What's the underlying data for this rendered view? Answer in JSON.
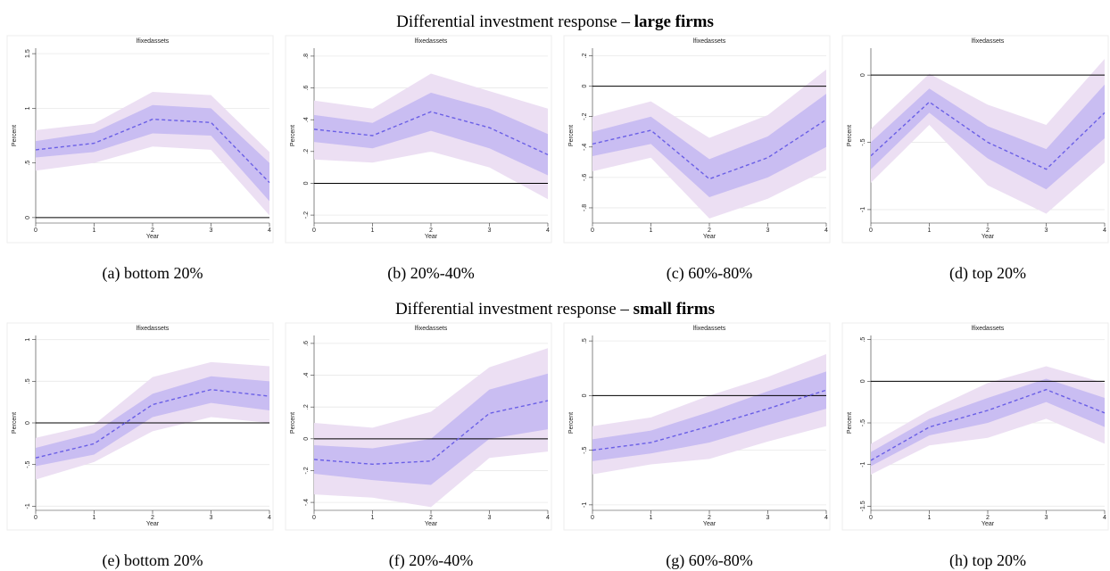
{
  "figure": {
    "headings": [
      {
        "text": "Differential investment response –",
        "bold": "large firms"
      },
      {
        "text": "Differential investment response –",
        "bold": "small firms"
      }
    ]
  },
  "chart_data": [
    {
      "type": "line",
      "title": "lfixedassets",
      "xlabel": "Year",
      "ylabel": "Percent",
      "caption": "(a) bottom 20%",
      "x": [
        0,
        1,
        2,
        3,
        4
      ],
      "values": [
        0.62,
        0.68,
        0.9,
        0.87,
        0.32
      ],
      "color": "#6a5fe6",
      "band_inner": {
        "lower": [
          0.55,
          0.6,
          0.77,
          0.75,
          0.15
        ],
        "upper": [
          0.7,
          0.78,
          1.03,
          1.0,
          0.5
        ],
        "color": "#c9bdf2"
      },
      "band_outer": {
        "lower": [
          0.43,
          0.5,
          0.65,
          0.62,
          0.02
        ],
        "upper": [
          0.8,
          0.86,
          1.15,
          1.12,
          0.6
        ],
        "color": "#ecdff3"
      },
      "reference_line": 0,
      "xlim": [
        0,
        4
      ],
      "xticks": [
        0,
        1,
        2,
        3,
        4
      ],
      "ylim": [
        -0.05,
        1.55
      ],
      "yticks": [
        0,
        {
          "value": 0.5,
          "label": ".5"
        },
        1,
        1.5
      ],
      "grid": true
    },
    {
      "type": "line",
      "title": "lfixedassets",
      "xlabel": "Year",
      "ylabel": "Percent",
      "caption": "(b) 20%-40%",
      "x": [
        0,
        1,
        2,
        3,
        4
      ],
      "values": [
        0.34,
        0.3,
        0.45,
        0.35,
        0.18
      ],
      "color": "#6a5fe6",
      "band_inner": {
        "lower": [
          0.26,
          0.22,
          0.33,
          0.22,
          0.05
        ],
        "upper": [
          0.43,
          0.38,
          0.57,
          0.47,
          0.31
        ],
        "color": "#c9bdf2"
      },
      "band_outer": {
        "lower": [
          0.15,
          0.13,
          0.2,
          0.1,
          -0.1
        ],
        "upper": [
          0.52,
          0.47,
          0.69,
          0.58,
          0.47
        ],
        "color": "#ecdff3"
      },
      "reference_line": 0,
      "xlim": [
        0,
        4
      ],
      "xticks": [
        0,
        1,
        2,
        3,
        4
      ],
      "ylim": [
        -0.25,
        0.85
      ],
      "yticks": [
        {
          "value": -0.2,
          "label": "-.2"
        },
        0,
        {
          "value": 0.2,
          "label": ".2"
        },
        {
          "value": 0.4,
          "label": ".4"
        },
        {
          "value": 0.6,
          "label": ".6"
        },
        {
          "value": 0.8,
          "label": ".8"
        }
      ],
      "grid": true
    },
    {
      "type": "line",
      "title": "lfixedassets",
      "xlabel": "Year",
      "ylabel": "Percent",
      "caption": "(c) 60%-80%",
      "x": [
        0,
        1,
        2,
        3,
        4
      ],
      "values": [
        -0.38,
        -0.29,
        -0.61,
        -0.47,
        -0.22
      ],
      "color": "#6a5fe6",
      "band_inner": {
        "lower": [
          -0.46,
          -0.38,
          -0.73,
          -0.6,
          -0.4
        ],
        "upper": [
          -0.3,
          -0.2,
          -0.48,
          -0.33,
          -0.05
        ],
        "color": "#c9bdf2"
      },
      "band_outer": {
        "lower": [
          -0.56,
          -0.47,
          -0.87,
          -0.74,
          -0.55
        ],
        "upper": [
          -0.2,
          -0.1,
          -0.34,
          -0.19,
          0.11
        ],
        "color": "#ecdff3"
      },
      "reference_line": 0,
      "xlim": [
        0,
        4
      ],
      "xticks": [
        0,
        1,
        2,
        3,
        4
      ],
      "ylim": [
        -0.9,
        0.25
      ],
      "yticks": [
        {
          "value": -0.8,
          "label": "-.8"
        },
        {
          "value": -0.6,
          "label": "-.6"
        },
        {
          "value": -0.4,
          "label": "-.4"
        },
        {
          "value": -0.2,
          "label": "-.2"
        },
        0,
        {
          "value": 0.2,
          "label": ".2"
        }
      ],
      "grid": true
    },
    {
      "type": "line",
      "title": "lfixedassets",
      "xlabel": "Year",
      "ylabel": "Percent",
      "caption": "(d) top 20%",
      "x": [
        0,
        1,
        2,
        3,
        4
      ],
      "values": [
        -0.6,
        -0.2,
        -0.5,
        -0.7,
        -0.28
      ],
      "color": "#6a5fe6",
      "band_inner": {
        "lower": [
          -0.7,
          -0.28,
          -0.62,
          -0.85,
          -0.47
        ],
        "upper": [
          -0.5,
          -0.1,
          -0.38,
          -0.55,
          -0.07
        ],
        "color": "#c9bdf2"
      },
      "band_outer": {
        "lower": [
          -0.8,
          -0.37,
          -0.82,
          -1.03,
          -0.65
        ],
        "upper": [
          -0.4,
          0.01,
          -0.22,
          -0.37,
          0.12
        ],
        "color": "#ecdff3"
      },
      "reference_line": 0,
      "xlim": [
        0,
        4
      ],
      "xticks": [
        0,
        1,
        2,
        3,
        4
      ],
      "ylim": [
        -1.1,
        0.2
      ],
      "yticks": [
        -1,
        {
          "value": -0.5,
          "label": "-.5"
        },
        0
      ],
      "grid": true
    },
    {
      "type": "line",
      "title": "lfixedassets",
      "xlabel": "Year",
      "ylabel": "Percent",
      "caption": "(e) bottom 20%",
      "x": [
        0,
        1,
        2,
        3,
        4
      ],
      "values": [
        -0.42,
        -0.25,
        0.22,
        0.4,
        0.32
      ],
      "color": "#6a5fe6",
      "band_inner": {
        "lower": [
          -0.52,
          -0.38,
          0.07,
          0.24,
          0.15
        ],
        "upper": [
          -0.3,
          -0.12,
          0.35,
          0.56,
          0.5
        ],
        "color": "#c9bdf2"
      },
      "band_outer": {
        "lower": [
          -0.68,
          -0.47,
          -0.1,
          0.07,
          0
        ],
        "upper": [
          -0.18,
          -0.02,
          0.55,
          0.73,
          0.68
        ],
        "color": "#ecdff3"
      },
      "reference_line": 0,
      "xlim": [
        0,
        4
      ],
      "xticks": [
        0,
        1,
        2,
        3,
        4
      ],
      "ylim": [
        -1.05,
        1.05
      ],
      "yticks": [
        -1,
        {
          "value": -0.5,
          "label": "-.5"
        },
        0,
        {
          "value": 0.5,
          "label": ".5"
        },
        1
      ],
      "grid": true
    },
    {
      "type": "line",
      "title": "lfixedassets",
      "xlabel": "Year",
      "ylabel": "Percent",
      "caption": "(f) 20%-40%",
      "x": [
        0,
        1,
        2,
        3,
        4
      ],
      "values": [
        -0.13,
        -0.16,
        -0.14,
        0.16,
        0.24
      ],
      "color": "#6a5fe6",
      "band_inner": {
        "lower": [
          -0.22,
          -0.26,
          -0.29,
          0,
          0.06
        ],
        "upper": [
          -0.04,
          -0.06,
          0,
          0.31,
          0.41
        ],
        "color": "#c9bdf2"
      },
      "band_outer": {
        "lower": [
          -0.35,
          -0.37,
          -0.43,
          -0.12,
          -0.08
        ],
        "upper": [
          0.1,
          0.07,
          0.17,
          0.45,
          0.57
        ],
        "color": "#ecdff3"
      },
      "reference_line": 0,
      "xlim": [
        0,
        4
      ],
      "xticks": [
        0,
        1,
        2,
        3,
        4
      ],
      "ylim": [
        -0.45,
        0.65
      ],
      "yticks": [
        {
          "value": -0.4,
          "label": "-.4"
        },
        {
          "value": -0.2,
          "label": "-.2"
        },
        0,
        {
          "value": 0.2,
          "label": ".2"
        },
        {
          "value": 0.4,
          "label": ".4"
        },
        {
          "value": 0.6,
          "label": ".6"
        }
      ],
      "grid": true
    },
    {
      "type": "line",
      "title": "lfixedassets",
      "xlabel": "Year",
      "ylabel": "Percent",
      "caption": "(g) 60%-80%",
      "x": [
        0,
        1,
        2,
        3,
        4
      ],
      "values": [
        -0.5,
        -0.43,
        -0.28,
        -0.12,
        0.05
      ],
      "color": "#6a5fe6",
      "band_inner": {
        "lower": [
          -0.6,
          -0.53,
          -0.43,
          -0.27,
          -0.12
        ],
        "upper": [
          -0.4,
          -0.32,
          -0.15,
          0.04,
          0.22
        ],
        "color": "#c9bdf2"
      },
      "band_outer": {
        "lower": [
          -0.72,
          -0.63,
          -0.58,
          -0.42,
          -0.28
        ],
        "upper": [
          -0.28,
          -0.2,
          0,
          0.17,
          0.38
        ],
        "color": "#ecdff3"
      },
      "reference_line": 0,
      "xlim": [
        0,
        4
      ],
      "xticks": [
        0,
        1,
        2,
        3,
        4
      ],
      "ylim": [
        -1.05,
        0.55
      ],
      "yticks": [
        -1,
        {
          "value": -0.5,
          "label": "-.5"
        },
        0,
        {
          "value": 0.5,
          "label": ".5"
        }
      ],
      "grid": true
    },
    {
      "type": "line",
      "title": "lfixedassets",
      "xlabel": "Year",
      "ylabel": "Percent",
      "caption": "(h) top 20%",
      "x": [
        0,
        1,
        2,
        3,
        4
      ],
      "values": [
        -0.95,
        -0.55,
        -0.35,
        -0.1,
        -0.38
      ],
      "color": "#6a5fe6",
      "band_inner": {
        "lower": [
          -1.02,
          -0.65,
          -0.5,
          -0.25,
          -0.55
        ],
        "upper": [
          -0.85,
          -0.45,
          -0.2,
          0.03,
          -0.2
        ],
        "color": "#c9bdf2"
      },
      "band_outer": {
        "lower": [
          -1.12,
          -0.77,
          -0.68,
          -0.45,
          -0.75
        ],
        "upper": [
          -0.75,
          -0.35,
          -0.02,
          0.18,
          -0.02
        ],
        "color": "#ecdff3"
      },
      "reference_line": 0,
      "xlim": [
        0,
        4
      ],
      "xticks": [
        0,
        1,
        2,
        3,
        4
      ],
      "ylim": [
        -1.55,
        0.55
      ],
      "yticks": [
        -1.5,
        -1,
        {
          "value": -0.5,
          "label": "-.5"
        },
        0,
        {
          "value": 0.5,
          "label": ".5"
        }
      ],
      "grid": true
    }
  ]
}
